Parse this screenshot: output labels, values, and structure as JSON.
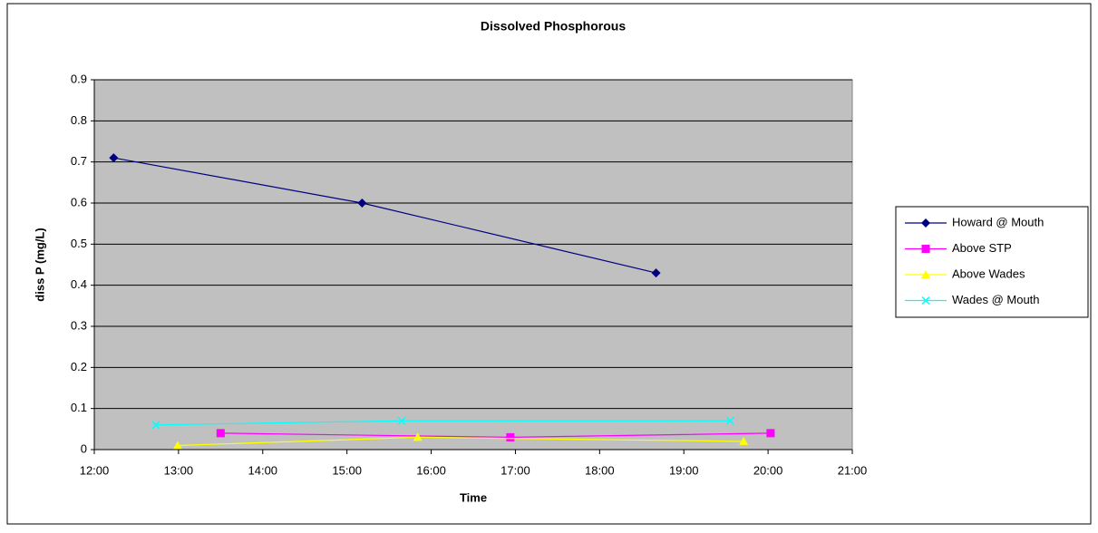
{
  "chart_data": {
    "type": "line",
    "title": "Dissolved Phosphorous",
    "x_label": "Time",
    "y_label": "diss P (mg/L)",
    "xlim": [
      12,
      21
    ],
    "xticks": [
      {
        "value": 12,
        "label": "12:00"
      },
      {
        "value": 13,
        "label": "13:00"
      },
      {
        "value": 14,
        "label": "14:00"
      },
      {
        "value": 15,
        "label": "15:00"
      },
      {
        "value": 16,
        "label": "16:00"
      },
      {
        "value": 17,
        "label": "17:00"
      },
      {
        "value": 18,
        "label": "18:00"
      },
      {
        "value": 19,
        "label": "19:00"
      },
      {
        "value": 20,
        "label": "20:00"
      },
      {
        "value": 21,
        "label": "21:00"
      }
    ],
    "ylim": [
      0,
      0.9
    ],
    "yticks": [
      0,
      0.1,
      0.2,
      0.3,
      0.4,
      0.5,
      0.6,
      0.7,
      0.8,
      0.9
    ],
    "grid": true,
    "legend": "right",
    "series": [
      {
        "name": "Howard @ Mouth",
        "color": "#000080",
        "marker": "diamond",
        "x": [
          12.23,
          15.18,
          18.67
        ],
        "values": [
          0.71,
          0.6,
          0.43
        ]
      },
      {
        "name": "Above STP",
        "color": "#ff00ff",
        "marker": "square",
        "x": [
          13.5,
          16.94,
          20.03
        ],
        "values": [
          0.04,
          0.03,
          0.04
        ]
      },
      {
        "name": "Above Wades",
        "color": "#ffff00",
        "marker": "triangle",
        "x": [
          12.99,
          15.84,
          19.71
        ],
        "values": [
          0.01,
          0.03,
          0.02
        ]
      },
      {
        "name": "Wades @ Mouth",
        "color": "#00ffff",
        "marker": "x",
        "x": [
          12.73,
          15.65,
          19.55
        ],
        "values": [
          0.06,
          0.07,
          0.07
        ]
      }
    ]
  }
}
